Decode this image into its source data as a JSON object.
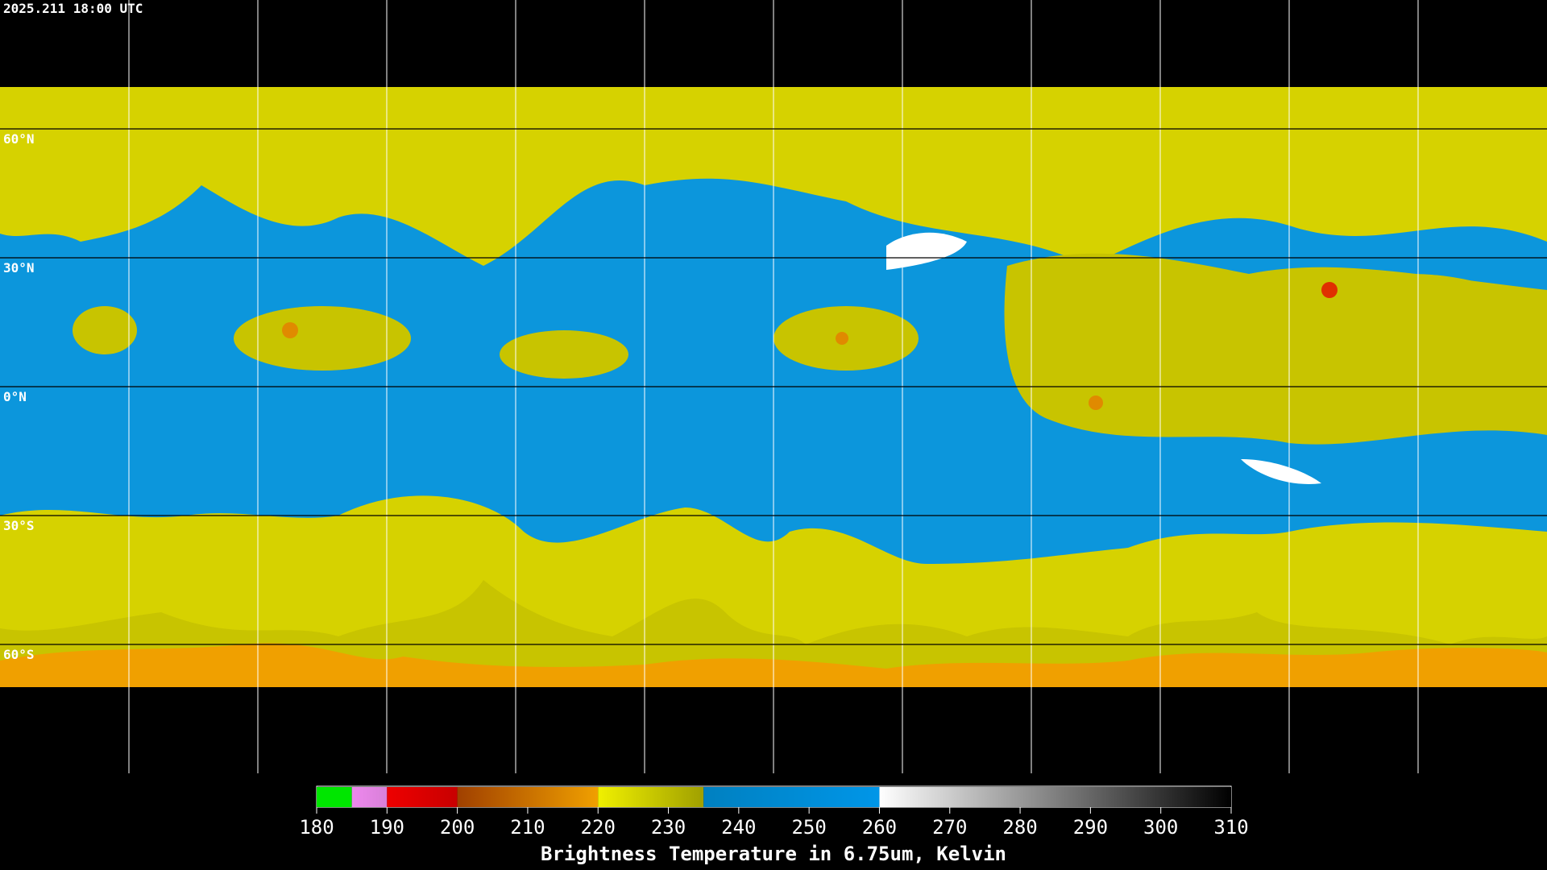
{
  "header": {
    "timestamp": "2025.211 18:00 UTC"
  },
  "latitude_labels": [
    "60°N",
    "30°N",
    "0°N",
    "30°S",
    "60°S"
  ],
  "colorbar": {
    "title": "Brightness Temperature in 6.75um, Kelvin",
    "ticks": [
      180,
      190,
      200,
      210,
      220,
      230,
      240,
      250,
      260,
      270,
      280,
      290,
      300,
      310
    ],
    "segments": [
      {
        "from": 180,
        "to": 185,
        "colors": [
          "#00e600",
          "#00e600"
        ]
      },
      {
        "from": 185,
        "to": 190,
        "colors": [
          "#ee88ee",
          "#d880d8"
        ]
      },
      {
        "from": 190,
        "to": 200,
        "colors": [
          "#ee0000",
          "#c80000"
        ]
      },
      {
        "from": 200,
        "to": 220,
        "colors": [
          "#a04000",
          "#f0a000"
        ]
      },
      {
        "from": 220,
        "to": 235,
        "colors": [
          "#f0f000",
          "#a0a000"
        ]
      },
      {
        "from": 235,
        "to": 260,
        "colors": [
          "#0080c0",
          "#0096e8"
        ]
      },
      {
        "from": 260,
        "to": 310,
        "colors": [
          "#ffffff",
          "#000000"
        ]
      }
    ]
  }
}
